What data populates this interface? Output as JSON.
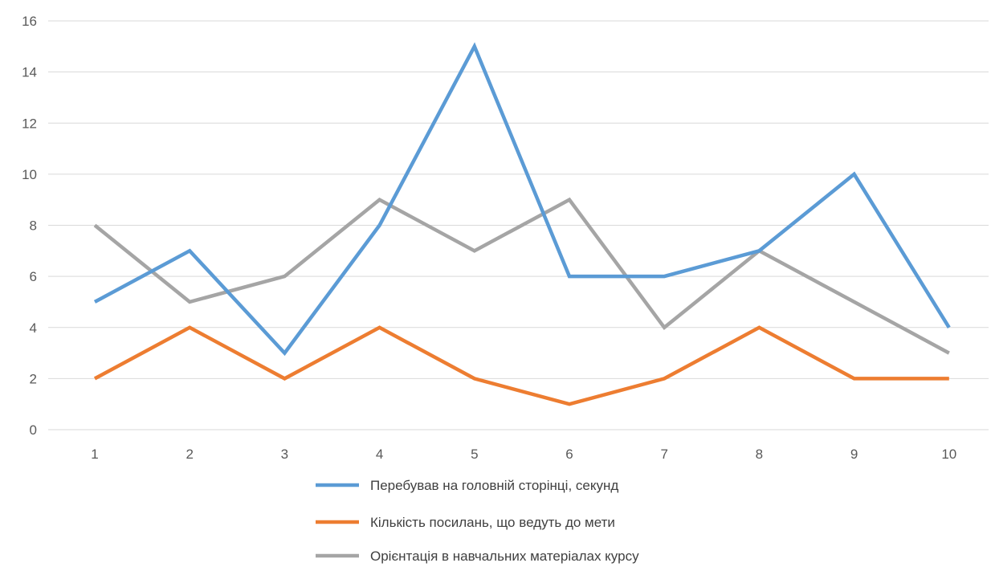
{
  "chart_data": {
    "type": "line",
    "title": "",
    "xlabel": "",
    "ylabel": "",
    "categories": [
      "1",
      "2",
      "3",
      "4",
      "5",
      "6",
      "7",
      "8",
      "9",
      "10"
    ],
    "ylim": [
      0,
      16
    ],
    "yticks": [
      0,
      2,
      4,
      6,
      8,
      10,
      12,
      14,
      16
    ],
    "grid": true,
    "legend_position": "bottom",
    "series": [
      {
        "name": "Перебував на головній сторінці, секунд",
        "color": "#5b9bd5",
        "values": [
          5,
          7,
          3,
          8,
          15,
          6,
          6,
          7,
          10,
          4
        ]
      },
      {
        "name": "Кількість посилань, що ведуть до мети",
        "color": "#ed7d31",
        "values": [
          2,
          4,
          2,
          4,
          2,
          1,
          2,
          4,
          2,
          2
        ]
      },
      {
        "name": "Орієнтація в навчальних матеріалах курсу",
        "color": "#a5a5a5",
        "values": [
          8,
          5,
          6,
          9,
          7,
          9,
          4,
          7,
          5,
          3
        ]
      }
    ]
  }
}
